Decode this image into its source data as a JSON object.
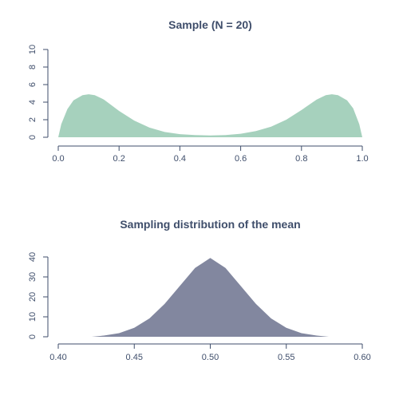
{
  "colors": {
    "text": "#3f4e6b",
    "axis": "#3f4e6b",
    "sample_fill": "#a6d1bd",
    "sampling_fill": "#82879f"
  },
  "chart_data": [
    {
      "type": "area",
      "title": "Sample (N = 20)",
      "xlabel": "",
      "ylabel": "",
      "xlim": [
        0.0,
        1.0
      ],
      "ylim": [
        0,
        10
      ],
      "x_ticks": [
        0.0,
        0.2,
        0.4,
        0.6,
        0.8,
        1.0
      ],
      "x_tick_labels": [
        "0.0",
        "0.2",
        "0.4",
        "0.6",
        "0.8",
        "1.0"
      ],
      "y_ticks": [
        0,
        2,
        4,
        6,
        8,
        10
      ],
      "y_tick_labels": [
        "0",
        "2",
        "4",
        "6",
        "8",
        "10"
      ],
      "grid": false,
      "series": [
        {
          "x": [
            0.0,
            0.01,
            0.03,
            0.05,
            0.08,
            0.1,
            0.12,
            0.15,
            0.2,
            0.25,
            0.3,
            0.35,
            0.4,
            0.45,
            0.5,
            0.55,
            0.6,
            0.65,
            0.7,
            0.75,
            0.8,
            0.85,
            0.88,
            0.9,
            0.92,
            0.95,
            0.97,
            0.99,
            1.0
          ],
          "y": [
            0.0,
            1.5,
            3.2,
            4.2,
            4.8,
            4.9,
            4.8,
            4.3,
            3.0,
            1.9,
            1.1,
            0.6,
            0.35,
            0.25,
            0.2,
            0.25,
            0.4,
            0.7,
            1.2,
            2.0,
            3.1,
            4.3,
            4.8,
            4.9,
            4.8,
            4.2,
            3.3,
            1.5,
            0.0
          ]
        }
      ]
    },
    {
      "type": "area",
      "title": "Sampling distribution of the mean",
      "xlabel": "",
      "ylabel": "",
      "xlim": [
        0.4,
        0.6
      ],
      "ylim": [
        0,
        40
      ],
      "x_ticks": [
        0.4,
        0.45,
        0.5,
        0.55,
        0.6
      ],
      "x_tick_labels": [
        "0.40",
        "0.45",
        "0.50",
        "0.55",
        "0.60"
      ],
      "y_ticks": [
        0,
        10,
        20,
        30,
        40
      ],
      "y_tick_labels": [
        "0",
        "10",
        "20",
        "30",
        "40"
      ],
      "grid": false,
      "series": [
        {
          "x": [
            0.422,
            0.43,
            0.44,
            0.45,
            0.46,
            0.47,
            0.48,
            0.49,
            0.5,
            0.51,
            0.52,
            0.53,
            0.54,
            0.55,
            0.56,
            0.57,
            0.578
          ],
          "y": [
            0.0,
            0.6,
            1.8,
            4.5,
            9.2,
            16.5,
            25.5,
            34.5,
            39.5,
            34.5,
            25.5,
            16.5,
            9.2,
            4.5,
            1.8,
            0.6,
            0.0
          ]
        }
      ]
    }
  ]
}
